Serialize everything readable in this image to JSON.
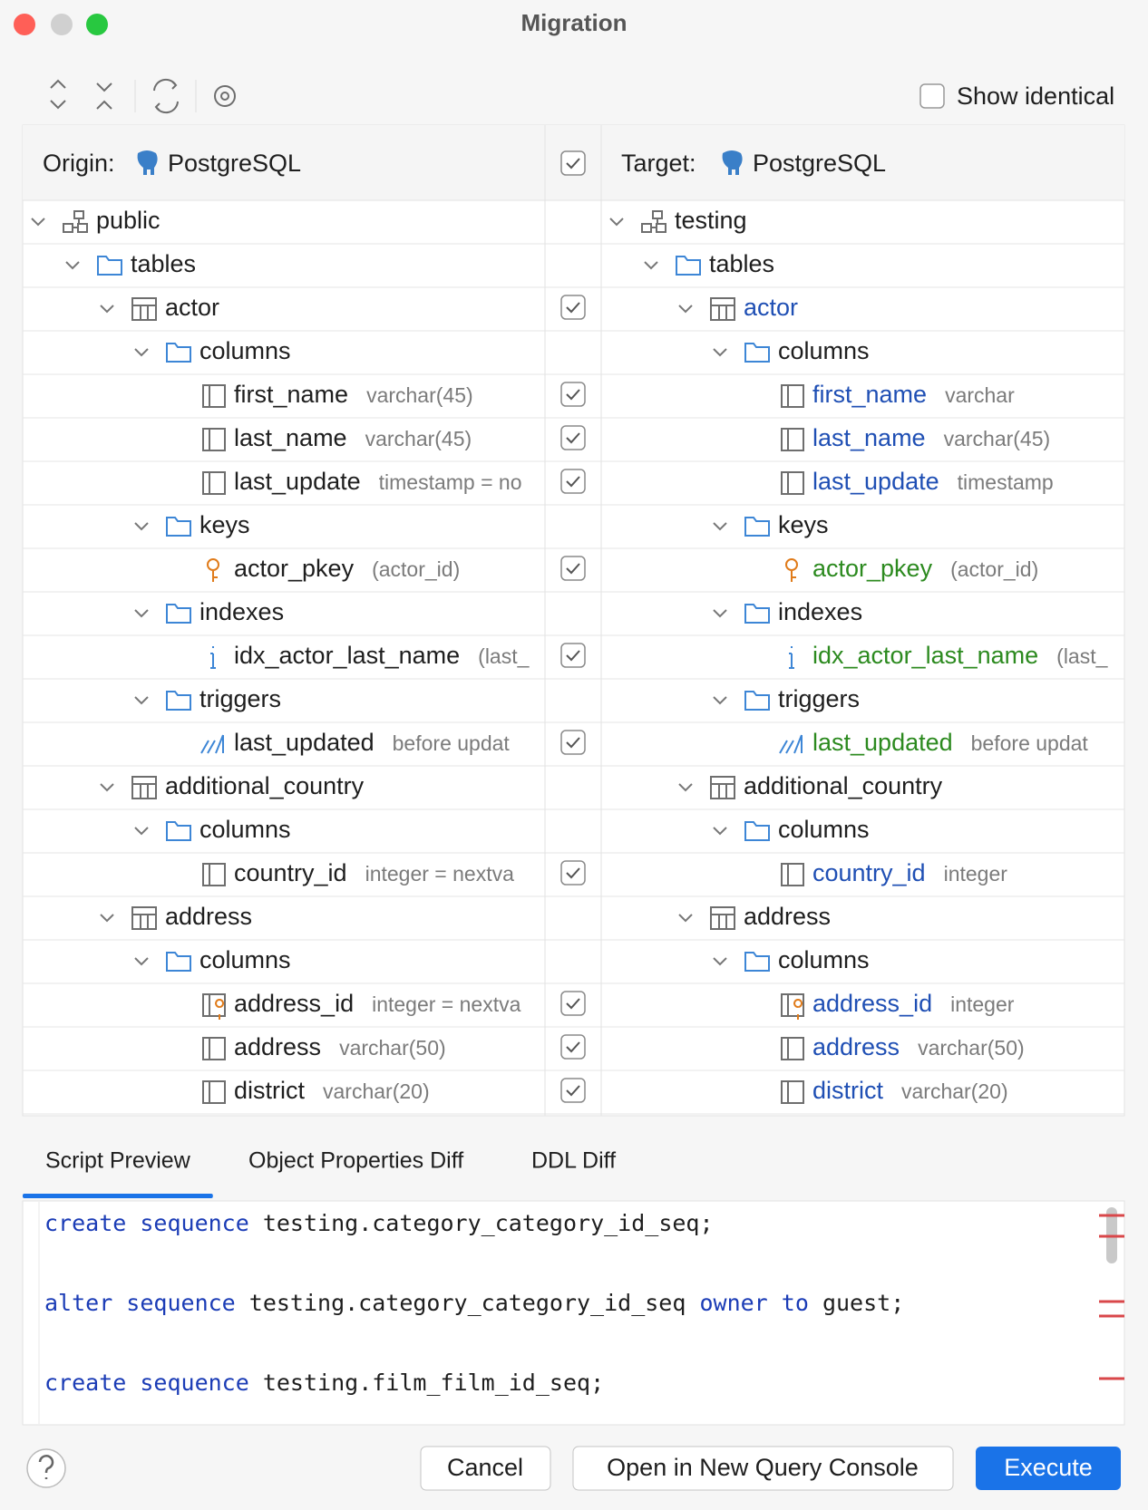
{
  "window": {
    "title": "Migration"
  },
  "toolbar": {
    "show_identical": {
      "label": "Show identical",
      "checked": false
    }
  },
  "header": {
    "origin_label": "Origin:",
    "origin_db": "PostgreSQL",
    "all_checked": true,
    "target_label": "Target:",
    "target_db": "PostgreSQL"
  },
  "tree": [
    {
      "icon": "schema",
      "left": {
        "label": "public"
      },
      "right": {
        "label": "testing"
      },
      "children": [
        {
          "icon": "folder",
          "left": {
            "label": "tables"
          },
          "right": {
            "label": "tables"
          },
          "children": [
            {
              "icon": "table",
              "checked": true,
              "left": {
                "label": "actor"
              },
              "right": {
                "label": "actor",
                "status": "modified"
              },
              "children": [
                {
                  "icon": "folder",
                  "left": {
                    "label": "columns"
                  },
                  "right": {
                    "label": "columns"
                  },
                  "children": [
                    {
                      "icon": "column",
                      "checked": true,
                      "left": {
                        "label": "first_name",
                        "detail": "varchar(45)"
                      },
                      "right": {
                        "label": "first_name",
                        "detail": "varchar",
                        "status": "modified"
                      }
                    },
                    {
                      "icon": "column",
                      "checked": true,
                      "left": {
                        "label": "last_name",
                        "detail": "varchar(45)"
                      },
                      "right": {
                        "label": "last_name",
                        "detail": "varchar(45)",
                        "status": "modified"
                      }
                    },
                    {
                      "icon": "column",
                      "checked": true,
                      "left": {
                        "label": "last_update",
                        "detail": "timestamp = no"
                      },
                      "right": {
                        "label": "last_update",
                        "detail": "timestamp",
                        "status": "modified"
                      }
                    }
                  ]
                },
                {
                  "icon": "folder",
                  "left": {
                    "label": "keys"
                  },
                  "right": {
                    "label": "keys"
                  },
                  "children": [
                    {
                      "icon": "key",
                      "checked": true,
                      "left": {
                        "label": "actor_pkey",
                        "detail": "(actor_id)"
                      },
                      "right": {
                        "label": "actor_pkey",
                        "detail": "(actor_id)",
                        "status": "added"
                      }
                    }
                  ]
                },
                {
                  "icon": "folder",
                  "left": {
                    "label": "indexes"
                  },
                  "right": {
                    "label": "indexes"
                  },
                  "children": [
                    {
                      "icon": "index",
                      "checked": true,
                      "left": {
                        "label": "idx_actor_last_name",
                        "detail": "(last_"
                      },
                      "right": {
                        "label": "idx_actor_last_name",
                        "detail": "(last_",
                        "status": "added"
                      }
                    }
                  ]
                },
                {
                  "icon": "folder",
                  "left": {
                    "label": "triggers"
                  },
                  "right": {
                    "label": "triggers"
                  },
                  "children": [
                    {
                      "icon": "trigger",
                      "checked": true,
                      "left": {
                        "label": "last_updated",
                        "detail": "before updat"
                      },
                      "right": {
                        "label": "last_updated",
                        "detail": "before updat",
                        "status": "added"
                      }
                    }
                  ]
                }
              ]
            },
            {
              "icon": "table",
              "left": {
                "label": "additional_country"
              },
              "right": {
                "label": "additional_country"
              },
              "children": [
                {
                  "icon": "folder",
                  "left": {
                    "label": "columns"
                  },
                  "right": {
                    "label": "columns"
                  },
                  "children": [
                    {
                      "icon": "column",
                      "checked": true,
                      "left": {
                        "label": "country_id",
                        "detail": "integer = nextva"
                      },
                      "right": {
                        "label": "country_id",
                        "detail": "integer",
                        "status": "modified"
                      }
                    }
                  ]
                }
              ]
            },
            {
              "icon": "table",
              "left": {
                "label": "address"
              },
              "right": {
                "label": "address"
              },
              "children": [
                {
                  "icon": "folder",
                  "left": {
                    "label": "columns"
                  },
                  "right": {
                    "label": "columns"
                  },
                  "children": [
                    {
                      "icon": "pk-column",
                      "checked": true,
                      "left": {
                        "label": "address_id",
                        "detail": "integer = nextva"
                      },
                      "right": {
                        "label": "address_id",
                        "detail": "integer",
                        "status": "modified"
                      }
                    },
                    {
                      "icon": "column",
                      "checked": true,
                      "left": {
                        "label": "address",
                        "detail": "varchar(50)"
                      },
                      "right": {
                        "label": "address",
                        "detail": "varchar(50)",
                        "status": "modified"
                      }
                    },
                    {
                      "icon": "column",
                      "checked": true,
                      "left": {
                        "label": "district",
                        "detail": "varchar(20)"
                      },
                      "right": {
                        "label": "district",
                        "detail": "varchar(20)",
                        "status": "modified"
                      }
                    }
                  ]
                }
              ]
            }
          ]
        }
      ]
    }
  ],
  "tabs": {
    "items": [
      "Script Preview",
      "Object Properties Diff",
      "DDL Diff"
    ],
    "active": "Script Preview"
  },
  "script": [
    [
      {
        "text": "create sequence",
        "kw": true
      },
      {
        "text": " testing.category_category_id_seq;"
      }
    ],
    [
      {
        "text": "alter sequence",
        "kw": true
      },
      {
        "text": " testing.category_category_id_seq "
      },
      {
        "text": "owner to",
        "kw": true
      },
      {
        "text": " guest;"
      }
    ],
    [
      {
        "text": "create sequence",
        "kw": true
      },
      {
        "text": " testing.film_film_id_seq;"
      }
    ]
  ],
  "buttons": {
    "cancel": "Cancel",
    "open_console": "Open in New Query Console",
    "execute": "Execute"
  }
}
